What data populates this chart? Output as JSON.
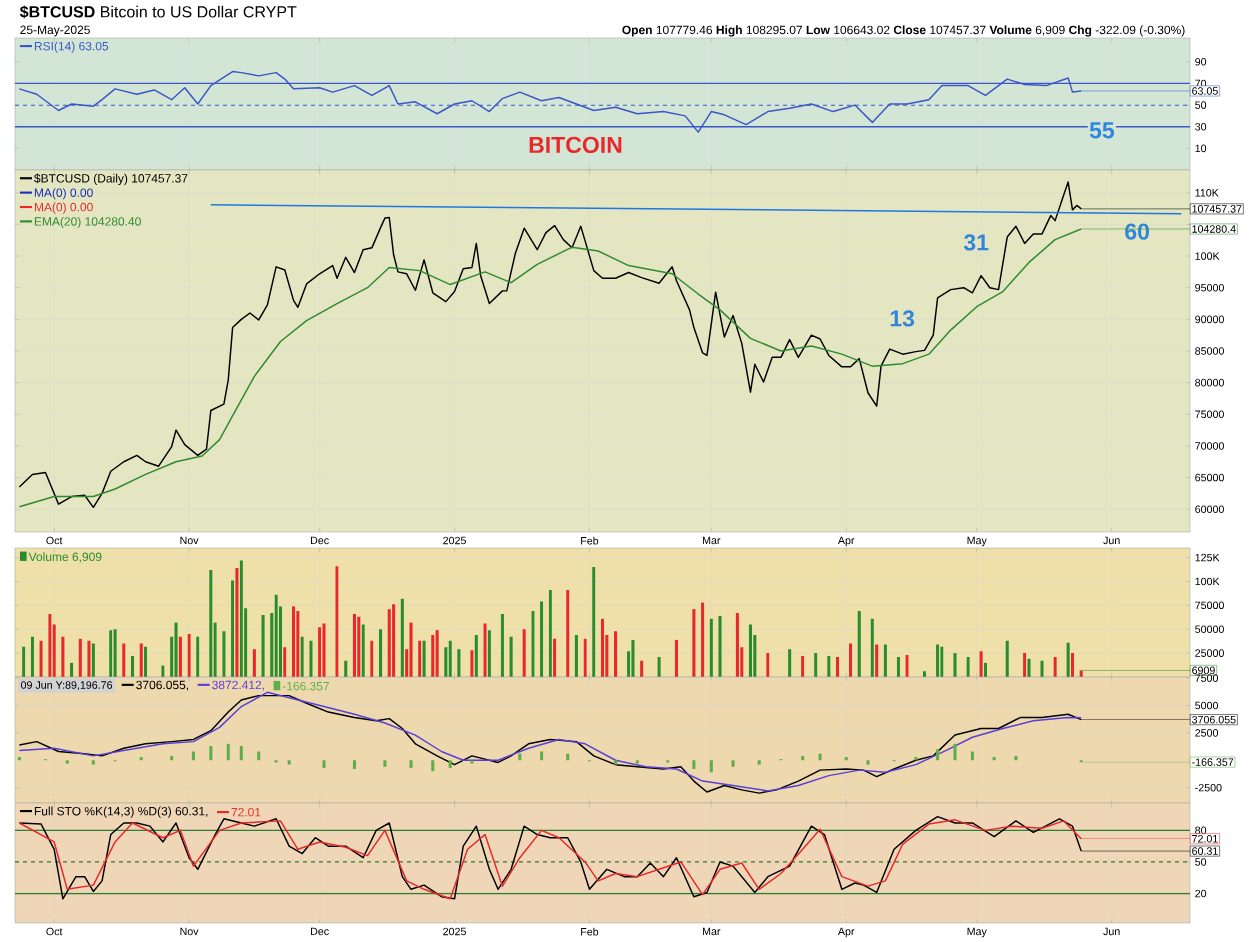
{
  "chart_data": [
    {
      "type": "line",
      "title": "**$BTCUSD** Bitcoin to US Dollar CRYPT",
      "subtitle": "**Open** 107779.46 **High** 108295.07 **Low** 106643.02 **Close** 107457.37 **Volume** 6,909 **Chg** -322.09 (-0.30%)",
      "annotations": [
        "25-May-2025",
        "BITCOIN",
        "55",
        {
          "text": "63.05",
          "x": "2025-05-25",
          "y": 63.05
        }
      ],
      "xlim": [
        "2024-09-22",
        "2025-06-19"
      ],
      "xticks": [
        {
          "value": "2024-10-01",
          "label": null
        },
        {
          "value": "2024-11-01",
          "label": null
        },
        {
          "value": "2024-12-01",
          "label": null
        },
        {
          "value": "2025-01-01",
          "label": null
        },
        {
          "value": "2025-02-01",
          "label": null
        },
        {
          "value": "2025-03-01",
          "label": null
        },
        {
          "value": "2025-04-01",
          "label": null
        },
        {
          "value": "2025-05-01",
          "label": null
        },
        {
          "value": "2025-06-01",
          "label": null
        }
      ],
      "ylim": [
        -10,
        112
      ],
      "yticks": [
        10,
        30,
        50,
        70,
        90
      ],
      "tick_labels": "y",
      "grid": "x",
      "legend": "top left",
      "ref_lines": [
        {
          "axis": "y",
          "value": 70,
          "color": "#3a56c8"
        },
        {
          "axis": "y",
          "value": 50,
          "color": "#3a56c8",
          "line_style": "dashed"
        },
        {
          "axis": "y",
          "value": 30,
          "color": "#3a56c8"
        }
      ],
      "series": [
        {
          "name": "RSI(14) 63.05",
          "color": "#3a56c8",
          "x": [
            "2024-09-23",
            "2024-09-27",
            "2024-10-02",
            "2024-10-05",
            "2024-10-10",
            "2024-10-12",
            "2024-10-15",
            "2024-10-20",
            "2024-10-24",
            "2024-10-28",
            "2024-10-31",
            "2024-11-03",
            "2024-11-06",
            "2024-11-11",
            "2024-11-13",
            "2024-11-17",
            "2024-11-21",
            "2024-11-23",
            "2024-11-25",
            "2024-12-01",
            "2024-12-04",
            "2024-12-09",
            "2024-12-13",
            "2024-12-17",
            "2024-12-19",
            "2024-12-23",
            "2024-12-28",
            "2025-01-01",
            "2025-01-05",
            "2025-01-09",
            "2025-01-12",
            "2025-01-16",
            "2025-01-21",
            "2025-01-25",
            "2025-01-29",
            "2025-02-02",
            "2025-02-07",
            "2025-02-12",
            "2025-02-18",
            "2025-02-23",
            "2025-02-26",
            "2025-03-01",
            "2025-03-04",
            "2025-03-09",
            "2025-03-14",
            "2025-03-19",
            "2025-03-24",
            "2025-03-29",
            "2025-04-03",
            "2025-04-07",
            "2025-04-11",
            "2025-04-15",
            "2025-04-20",
            "2025-04-23",
            "2025-04-29",
            "2025-05-03",
            "2025-05-08",
            "2025-05-12",
            "2025-05-17",
            "2025-05-22",
            "2025-05-23",
            "2025-05-25"
          ],
          "values": [
            65,
            60,
            45,
            51,
            49,
            55,
            65,
            60,
            64,
            55,
            66,
            51,
            68,
            81,
            80,
            77,
            80,
            74,
            65,
            66,
            62,
            68,
            59,
            68,
            51,
            53,
            42,
            51,
            54,
            44,
            56,
            62,
            54,
            57,
            51,
            45,
            48,
            42,
            44,
            40,
            25,
            44,
            41,
            32,
            44,
            47,
            51,
            44,
            50,
            34,
            51,
            51,
            55,
            68,
            68,
            59,
            74,
            69,
            68,
            75,
            62,
            63.05
          ]
        }
      ]
    },
    {
      "type": "line",
      "annotations": [
        "13",
        "31",
        "60",
        {
          "text": "107457.37",
          "x": "2025-05-25",
          "y": 107457.37
        },
        {
          "text": "104280.4",
          "x": "2025-05-25",
          "y": 104280.4
        }
      ],
      "xlim": [
        "2024-09-22",
        "2025-06-19"
      ],
      "xticks": [
        {
          "value": "2024-10-01",
          "label": "Oct"
        },
        {
          "value": "2024-11-01",
          "label": "Nov"
        },
        {
          "value": "2024-12-01",
          "label": "Dec"
        },
        {
          "value": "2025-01-01",
          "label": "2025"
        },
        {
          "value": "2025-02-01",
          "label": "Feb"
        },
        {
          "value": "2025-03-01",
          "label": "Mar"
        },
        {
          "value": "2025-04-01",
          "label": "Apr"
        },
        {
          "value": "2025-05-01",
          "label": "May"
        },
        {
          "value": "2025-06-01",
          "label": "Jun"
        }
      ],
      "ylim": [
        56400,
        113600
      ],
      "yticks": [
        60000,
        65000,
        70000,
        75000,
        80000,
        85000,
        90000,
        95000,
        {
          "value": 100000,
          "label": "100K"
        },
        {
          "value": 105000,
          "label": null
        },
        {
          "value": 110000,
          "label": "110K"
        }
      ],
      "grid": true,
      "legend": "top left",
      "series": [
        {
          "name": "$BTCUSD (Daily) 107457.37",
          "color": "#000000",
          "x": [
            "2024-09-23",
            "2024-09-26",
            "2024-09-29",
            "2024-10-02",
            "2024-10-05",
            "2024-10-08",
            "2024-10-10",
            "2024-10-12",
            "2024-10-14",
            "2024-10-17",
            "2024-10-20",
            "2024-10-22",
            "2024-10-25",
            "2024-10-28",
            "2024-10-29",
            "2024-10-31",
            "2024-11-03",
            "2024-11-05",
            "2024-11-06",
            "2024-11-09",
            "2024-11-10",
            "2024-11-11",
            "2024-11-13",
            "2024-11-15",
            "2024-11-17",
            "2024-11-19",
            "2024-11-21",
            "2024-11-23",
            "2024-11-25",
            "2024-11-26",
            "2024-11-28",
            "2024-12-01",
            "2024-12-04",
            "2024-12-05",
            "2024-12-07",
            "2024-12-09",
            "2024-12-11",
            "2024-12-13",
            "2024-12-15",
            "2024-12-16",
            "2024-12-17",
            "2024-12-18",
            "2024-12-19",
            "2024-12-21",
            "2024-12-23",
            "2024-12-25",
            "2024-12-27",
            "2024-12-30",
            "2025-01-01",
            "2025-01-03",
            "2025-01-05",
            "2025-01-06",
            "2025-01-07",
            "2025-01-09",
            "2025-01-12",
            "2025-01-13",
            "2025-01-15",
            "2025-01-17",
            "2025-01-20",
            "2025-01-22",
            "2025-01-24",
            "2025-01-26",
            "2025-01-28",
            "2025-01-30",
            "2025-01-31",
            "2025-02-02",
            "2025-02-04",
            "2025-02-07",
            "2025-02-10",
            "2025-02-13",
            "2025-02-17",
            "2025-02-20",
            "2025-02-21",
            "2025-02-24",
            "2025-02-25",
            "2025-02-27",
            "2025-02-28",
            "2025-03-02",
            "2025-03-04",
            "2025-03-06",
            "2025-03-08",
            "2025-03-10",
            "2025-03-11",
            "2025-03-13",
            "2025-03-15",
            "2025-03-17",
            "2025-03-19",
            "2025-03-21",
            "2025-03-24",
            "2025-03-26",
            "2025-03-28",
            "2025-03-31",
            "2025-04-02",
            "2025-04-04",
            "2025-04-06",
            "2025-04-08",
            "2025-04-09",
            "2025-04-11",
            "2025-04-14",
            "2025-04-17",
            "2025-04-19",
            "2025-04-21",
            "2025-04-22",
            "2025-04-25",
            "2025-04-28",
            "2025-04-30",
            "2025-05-02",
            "2025-05-04",
            "2025-05-06",
            "2025-05-08",
            "2025-05-10",
            "2025-05-12",
            "2025-05-14",
            "2025-05-16",
            "2025-05-18",
            "2025-05-19",
            "2025-05-21",
            "2025-05-22",
            "2025-05-23",
            "2025-05-24",
            "2025-05-25"
          ],
          "values": [
            63500,
            65500,
            65800,
            60800,
            62000,
            62200,
            60300,
            62500,
            66000,
            67500,
            68500,
            67500,
            66800,
            69900,
            72500,
            70200,
            68500,
            69500,
            75600,
            76600,
            80400,
            88700,
            90000,
            91000,
            89900,
            92300,
            98300,
            97800,
            93000,
            91900,
            95600,
            97200,
            98500,
            96500,
            99800,
            97400,
            101000,
            101300,
            104500,
            106000,
            106100,
            100200,
            97500,
            97200,
            94600,
            99400,
            94200,
            92800,
            94400,
            98000,
            98200,
            102000,
            96900,
            92500,
            94500,
            94500,
            100500,
            104400,
            101000,
            103700,
            104800,
            102600,
            101300,
            104700,
            102400,
            97700,
            96500,
            96500,
            97400,
            96600,
            95700,
            98300,
            96100,
            91500,
            88700,
            84700,
            84300,
            94300,
            87200,
            90600,
            86200,
            78500,
            82900,
            80100,
            84000,
            84000,
            86800,
            84000,
            87500,
            86900,
            84300,
            82500,
            82500,
            83800,
            78400,
            76300,
            82600,
            85300,
            84500,
            84900,
            85100,
            87500,
            93400,
            94700,
            95000,
            94200,
            96900,
            95000,
            94700,
            103000,
            104700,
            102000,
            103500,
            103500,
            106400,
            105600,
            109700,
            111700,
            107300,
            108000,
            107457.37
          ]
        },
        {
          "name": "MA(0) 0.00",
          "color": "#1c2fb8"
        },
        {
          "name": "MA(0) 0.00",
          "color": "#e8282b"
        },
        {
          "name": "EMA(20) 104280.40",
          "color": "#2f8a2f",
          "x": [
            "2024-09-23",
            "2024-10-01",
            "2024-10-10",
            "2024-10-15",
            "2024-10-22",
            "2024-10-29",
            "2024-11-04",
            "2024-11-08",
            "2024-11-12",
            "2024-11-16",
            "2024-11-22",
            "2024-11-28",
            "2024-12-05",
            "2024-12-12",
            "2024-12-17",
            "2024-12-24",
            "2024-12-31",
            "2025-01-08",
            "2025-01-14",
            "2025-01-20",
            "2025-01-28",
            "2025-02-03",
            "2025-02-10",
            "2025-02-20",
            "2025-02-26",
            "2025-03-03",
            "2025-03-10",
            "2025-03-17",
            "2025-03-24",
            "2025-03-31",
            "2025-04-07",
            "2025-04-14",
            "2025-04-20",
            "2025-04-25",
            "2025-05-01",
            "2025-05-07",
            "2025-05-13",
            "2025-05-19",
            "2025-05-25"
          ],
          "values": [
            60400,
            62000,
            62000,
            63200,
            65500,
            67500,
            68400,
            71000,
            76000,
            81000,
            86500,
            89800,
            92500,
            95000,
            98200,
            97700,
            95500,
            97500,
            95800,
            98700,
            101400,
            100800,
            98500,
            97200,
            94000,
            91500,
            87000,
            85000,
            85800,
            84500,
            82600,
            83000,
            84500,
            88300,
            92000,
            94400,
            99000,
            102600,
            104280.4
          ]
        },
        {
          "color": "#1e78e0",
          "x": [
            "2024-11-06",
            "2025-06-17"
          ],
          "values": [
            108100,
            106700
          ]
        }
      ]
    },
    {
      "type": "bar",
      "annotations": [
        {
          "text": "6909",
          "x": "2025-05-25",
          "y": 6909
        }
      ],
      "xlim": [
        "2024-09-22",
        "2025-06-19"
      ],
      "xticks": [
        {
          "value": "2024-10-01",
          "label": null
        },
        {
          "value": "2024-11-01",
          "label": null
        },
        {
          "value": "2024-12-01",
          "label": null
        },
        {
          "value": "2025-01-01",
          "label": null
        },
        {
          "value": "2025-02-01",
          "label": null
        },
        {
          "value": "2025-03-01",
          "label": null
        },
        {
          "value": "2025-04-01",
          "label": null
        },
        {
          "value": "2025-05-01",
          "label": null
        },
        {
          "value": "2025-06-01",
          "label": null
        }
      ],
      "ylim": [
        0,
        135000
      ],
      "yticks": [
        25000,
        50000,
        75000,
        {
          "value": 100000,
          "label": "100K"
        },
        {
          "value": 125000,
          "label": "125K"
        }
      ],
      "tick_labels": "y",
      "grid": true,
      "legend": "top left",
      "series": [
        {
          "name": "Volume 6,909",
          "color": "#2a8c2a",
          "x": [
            "2024-09-24",
            "2024-09-26",
            "2024-09-28",
            "2024-09-30",
            "2024-10-01",
            "2024-10-03",
            "2024-10-05",
            "2024-10-07",
            "2024-10-09",
            "2024-10-10",
            "2024-10-14",
            "2024-10-15",
            "2024-10-17",
            "2024-10-19",
            "2024-10-21",
            "2024-10-22",
            "2024-10-26",
            "2024-10-28",
            "2024-10-29",
            "2024-10-30",
            "2024-11-01",
            "2024-11-03",
            "2024-11-06",
            "2024-11-07",
            "2024-11-09",
            "2024-11-11",
            "2024-11-12",
            "2024-11-13",
            "2024-11-14",
            "2024-11-16",
            "2024-11-18",
            "2024-11-20",
            "2024-11-21",
            "2024-11-22",
            "2024-11-23",
            "2024-11-25",
            "2024-11-26",
            "2024-11-27",
            "2024-11-29",
            "2024-12-01",
            "2024-12-02",
            "2024-12-05",
            "2024-12-07",
            "2024-12-09",
            "2024-12-10",
            "2024-12-11",
            "2024-12-13",
            "2024-12-15",
            "2024-12-17",
            "2024-12-18",
            "2024-12-20",
            "2024-12-21",
            "2024-12-22",
            "2024-12-24",
            "2024-12-25",
            "2024-12-27",
            "2024-12-28",
            "2024-12-30",
            "2024-12-31",
            "2025-01-02",
            "2025-01-05",
            "2025-01-06",
            "2025-01-08",
            "2025-01-09",
            "2025-01-12",
            "2025-01-14",
            "2025-01-17",
            "2025-01-19",
            "2025-01-21",
            "2025-01-23",
            "2025-01-24",
            "2025-01-27",
            "2025-01-29",
            "2025-01-31",
            "2025-02-02",
            "2025-02-04",
            "2025-02-05",
            "2025-02-07",
            "2025-02-10",
            "2025-02-11",
            "2025-02-13",
            "2025-02-17",
            "2025-02-21",
            "2025-02-25",
            "2025-02-27",
            "2025-03-01",
            "2025-03-03",
            "2025-03-07",
            "2025-03-08",
            "2025-03-10",
            "2025-03-11",
            "2025-03-14",
            "2025-03-19",
            "2025-03-22",
            "2025-03-25",
            "2025-03-28",
            "2025-03-30",
            "2025-04-02",
            "2025-04-04",
            "2025-04-07",
            "2025-04-08",
            "2025-04-10",
            "2025-04-13",
            "2025-04-15",
            "2025-04-19",
            "2025-04-22",
            "2025-04-23",
            "2025-04-26",
            "2025-04-29",
            "2025-05-02",
            "2025-05-03",
            "2025-05-08",
            "2025-05-12",
            "2025-05-13",
            "2025-05-16",
            "2025-05-19",
            "2025-05-22",
            "2025-05-23",
            "2025-05-25"
          ],
          "values": [
            32000,
            42000,
            38000,
            66000,
            55000,
            42000,
            15000,
            40000,
            38000,
            35000,
            49000,
            50000,
            35000,
            22000,
            35000,
            32000,
            12000,
            42000,
            57000,
            42000,
            45000,
            42000,
            112000,
            57000,
            48000,
            101000,
            114000,
            122000,
            72000,
            29000,
            65000,
            67000,
            86000,
            74000,
            31000,
            74000,
            69000,
            42000,
            38000,
            52000,
            56000,
            116000,
            17000,
            66000,
            63000,
            55000,
            38000,
            50000,
            71000,
            76000,
            82000,
            29000,
            57000,
            38000,
            38000,
            44000,
            49000,
            31000,
            38000,
            29000,
            28000,
            44000,
            56000,
            49000,
            66000,
            42000,
            50000,
            69000,
            79000,
            91000,
            40000,
            91000,
            44000,
            40000,
            115000,
            61000,
            44000,
            48000,
            27000,
            39000,
            17000,
            21000,
            39000,
            71000,
            78000,
            61000,
            64000,
            67000,
            31000,
            55000,
            44000,
            25000,
            29000,
            22000,
            25000,
            22000,
            21000,
            35000,
            69000,
            61000,
            34000,
            34000,
            21000,
            23000,
            6000,
            34000,
            32000,
            25000,
            21000,
            27000,
            15000,
            38000,
            25000,
            19000,
            17000,
            21000,
            36000,
            25000,
            6909
          ],
          "colors": [
            "#2a8c2a",
            "#2a8c2a",
            "#e8282b",
            "#e8282b",
            "#e8282b",
            "#e8282b",
            "#2a8c2a",
            "#e8282b",
            "#e8282b",
            "#2a8c2a",
            "#2a8c2a",
            "#2a8c2a",
            "#e8282b",
            "#2a8c2a",
            "#e8282b",
            "#2a8c2a",
            "#2a8c2a",
            "#2a8c2a",
            "#2a8c2a",
            "#e8282b",
            "#e8282b",
            "#2a8c2a",
            "#2a8c2a",
            "#2a8c2a",
            "#2a8c2a",
            "#2a8c2a",
            "#e8282b",
            "#2a8c2a",
            "#2a8c2a",
            "#e8282b",
            "#2a8c2a",
            "#2a8c2a",
            "#2a8c2a",
            "#2a8c2a",
            "#e8282b",
            "#e8282b",
            "#e8282b",
            "#2a8c2a",
            "#2a8c2a",
            "#e8282b",
            "#e8282b",
            "#e8282b",
            "#2a8c2a",
            "#e8282b",
            "#e8282b",
            "#2a8c2a",
            "#e8282b",
            "#2a8c2a",
            "#e8282b",
            "#e8282b",
            "#2a8c2a",
            "#e8282b",
            "#e8282b",
            "#e8282b",
            "#2a8c2a",
            "#e8282b",
            "#e8282b",
            "#2a8c2a",
            "#2a8c2a",
            "#2a8c2a",
            "#e8282b",
            "#2a8c2a",
            "#e8282b",
            "#2a8c2a",
            "#2a8c2a",
            "#2a8c2a",
            "#e8282b",
            "#2a8c2a",
            "#2a8c2a",
            "#2a8c2a",
            "#e8282b",
            "#e8282b",
            "#2a8c2a",
            "#e8282b",
            "#2a8c2a",
            "#e8282b",
            "#e8282b",
            "#e8282b",
            "#2a8c2a",
            "#2a8c2a",
            "#e8282b",
            "#2a8c2a",
            "#e8282b",
            "#e8282b",
            "#e8282b",
            "#2a8c2a",
            "#2a8c2a",
            "#e8282b",
            "#e8282b",
            "#2a8c2a",
            "#2a8c2a",
            "#e8282b",
            "#2a8c2a",
            "#e8282b",
            "#2a8c2a",
            "#2a8c2a",
            "#e8282b",
            "#e8282b",
            "#2a8c2a",
            "#2a8c2a",
            "#e8282b",
            "#2a8c2a",
            "#2a8c2a",
            "#e8282b",
            "#2a8c2a",
            "#2a8c2a",
            "#2a8c2a",
            "#2a8c2a",
            "#2a8c2a",
            "#e8282b",
            "#2a8c2a",
            "#2a8c2a",
            "#e8282b",
            "#2a8c2a",
            "#2a8c2a",
            "#e8282b",
            "#2a8c2a",
            "#e8282b",
            "#e8282b"
          ]
        }
      ]
    },
    {
      "type": "line",
      "annotations": [
        "09 Jun Y:89,196.76",
        {
          "text": "3706.055",
          "x": "2025-05-25",
          "y": 3706.055
        },
        {
          "text": "-166.357",
          "x": "2025-05-25",
          "y": -166.357
        }
      ],
      "xlim": [
        "2024-09-22",
        "2025-06-19"
      ],
      "xticks": [
        {
          "value": "2024-10-01",
          "label": null
        },
        {
          "value": "2024-11-01",
          "label": null
        },
        {
          "value": "2024-12-01",
          "label": null
        },
        {
          "value": "2025-01-01",
          "label": null
        },
        {
          "value": "2025-02-01",
          "label": null
        },
        {
          "value": "2025-03-01",
          "label": null
        },
        {
          "value": "2025-04-01",
          "label": null
        },
        {
          "value": "2025-05-01",
          "label": null
        },
        {
          "value": "2025-06-01",
          "label": null
        }
      ],
      "ylim": [
        -3900,
        7600
      ],
      "yticks": [
        -2500,
        2500,
        5000,
        7500
      ],
      "tick_labels": "y",
      "grid": true,
      "legend": "top left",
      "series": [
        {
          "name": "3706.055,",
          "color": "#000000",
          "x": [
            "2024-09-23",
            "2024-09-27",
            "2024-10-02",
            "2024-10-08",
            "2024-10-12",
            "2024-10-17",
            "2024-10-22",
            "2024-10-28",
            "2024-11-02",
            "2024-11-06",
            "2024-11-10",
            "2024-11-13",
            "2024-11-17",
            "2024-11-22",
            "2024-11-24",
            "2024-11-28",
            "2024-12-03",
            "2024-12-09",
            "2024-12-14",
            "2024-12-17",
            "2024-12-20",
            "2024-12-23",
            "2024-12-28",
            "2025-01-01",
            "2025-01-05",
            "2025-01-11",
            "2025-01-14",
            "2025-01-18",
            "2025-01-23",
            "2025-01-29",
            "2025-02-02",
            "2025-02-07",
            "2025-02-12",
            "2025-02-18",
            "2025-02-22",
            "2025-02-25",
            "2025-02-28",
            "2025-03-04",
            "2025-03-08",
            "2025-03-12",
            "2025-03-16",
            "2025-03-21",
            "2025-03-26",
            "2025-04-01",
            "2025-04-05",
            "2025-04-08",
            "2025-04-12",
            "2025-04-17",
            "2025-04-21",
            "2025-04-26",
            "2025-05-02",
            "2025-05-06",
            "2025-05-11",
            "2025-05-16",
            "2025-05-22",
            "2025-05-25"
          ],
          "values": [
            1400,
            1700,
            800,
            600,
            400,
            1100,
            1500,
            1700,
            1900,
            2700,
            4400,
            5500,
            5900,
            5900,
            5900,
            5200,
            4400,
            3900,
            3600,
            3800,
            2900,
            1500,
            400,
            -400,
            400,
            -200,
            400,
            1500,
            1900,
            1700,
            400,
            -400,
            -600,
            -800,
            -600,
            -1900,
            -2900,
            -2300,
            -2700,
            -3000,
            -2700,
            -1900,
            -900,
            -800,
            -900,
            -1500,
            -800,
            0,
            400,
            2300,
            2900,
            2900,
            3900,
            3900,
            4200,
            3706.055
          ]
        },
        {
          "name": "3872.412,",
          "color": "#5a3fd6",
          "x": [
            "2024-09-23",
            "2024-10-01",
            "2024-10-10",
            "2024-10-17",
            "2024-10-26",
            "2024-11-02",
            "2024-11-08",
            "2024-11-13",
            "2024-11-19",
            "2024-11-24",
            "2024-12-02",
            "2024-12-09",
            "2024-12-16",
            "2024-12-23",
            "2024-12-29",
            "2025-01-03",
            "2025-01-11",
            "2025-01-18",
            "2025-01-25",
            "2025-01-31",
            "2025-02-07",
            "2025-02-14",
            "2025-02-21",
            "2025-02-27",
            "2025-03-06",
            "2025-03-14",
            "2025-03-21",
            "2025-03-28",
            "2025-04-04",
            "2025-04-10",
            "2025-04-17",
            "2025-04-24",
            "2025-04-30",
            "2025-05-07",
            "2025-05-14",
            "2025-05-22",
            "2025-05-25"
          ],
          "values": [
            900,
            1100,
            400,
            900,
            1500,
            1700,
            3000,
            4900,
            6200,
            5700,
            4900,
            4200,
            3400,
            2300,
            800,
            0,
            0,
            1100,
            1900,
            1500,
            0,
            -600,
            -800,
            -1900,
            -2300,
            -2800,
            -2300,
            -1400,
            -900,
            -1100,
            -400,
            900,
            2100,
            2900,
            3600,
            3900,
            3872.412
          ]
        },
        {
          "name": "-166.357",
          "type": "bar",
          "color": "#5fae4a",
          "x": [
            "2024-09-23",
            "2024-09-29",
            "2024-10-04",
            "2024-10-10",
            "2024-10-15",
            "2024-10-21",
            "2024-10-28",
            "2024-11-02",
            "2024-11-06",
            "2024-11-10",
            "2024-11-13",
            "2024-11-17",
            "2024-11-21",
            "2024-11-24",
            "2024-12-02",
            "2024-12-09",
            "2024-12-16",
            "2024-12-22",
            "2024-12-27",
            "2024-12-31",
            "2025-01-05",
            "2025-01-11",
            "2025-01-16",
            "2025-01-21",
            "2025-01-27",
            "2025-02-01",
            "2025-02-07",
            "2025-02-12",
            "2025-02-19",
            "2025-02-25",
            "2025-03-01",
            "2025-03-06",
            "2025-03-12",
            "2025-03-17",
            "2025-03-22",
            "2025-03-26",
            "2025-04-01",
            "2025-04-06",
            "2025-04-12",
            "2025-04-17",
            "2025-04-22",
            "2025-04-26",
            "2025-04-30",
            "2025-05-05",
            "2025-05-10",
            "2025-05-14",
            "2025-05-20",
            "2025-05-25"
          ],
          "values": [
            300,
            100,
            -300,
            -400,
            -100,
            300,
            400,
            800,
            1300,
            1500,
            1300,
            800,
            -200,
            -400,
            -700,
            -800,
            -600,
            -700,
            -1000,
            -700,
            -300,
            0,
            600,
            800,
            600,
            -100,
            -400,
            -300,
            -200,
            -800,
            -1100,
            -600,
            -400,
            100,
            400,
            600,
            300,
            -400,
            -100,
            300,
            1000,
            1500,
            800,
            300,
            400,
            0,
            0,
            -166.357
          ]
        }
      ]
    },
    {
      "type": "line",
      "annotations": [
        {
          "text": "72.01",
          "x": "2025-05-25",
          "y": 72.01
        },
        {
          "text": "60.31",
          "x": "2025-05-25",
          "y": 60.31
        }
      ],
      "xlim": [
        "2024-09-22",
        "2025-06-19"
      ],
      "xticks": [
        {
          "value": "2024-10-01",
          "label": "Oct"
        },
        {
          "value": "2024-11-01",
          "label": "Nov"
        },
        {
          "value": "2024-12-01",
          "label": "Dec"
        },
        {
          "value": "2025-01-01",
          "label": "2025"
        },
        {
          "value": "2025-02-01",
          "label": "Feb"
        },
        {
          "value": "2025-03-01",
          "label": "Mar"
        },
        {
          "value": "2025-04-01",
          "label": "Apr"
        },
        {
          "value": "2025-05-01",
          "label": "May"
        },
        {
          "value": "2025-06-01",
          "label": "Jun"
        }
      ],
      "ylim": [
        -8,
        106
      ],
      "yticks": [
        20,
        50,
        80
      ],
      "grid": "x",
      "legend": "top left",
      "ref_lines": [
        {
          "axis": "y",
          "value": 80,
          "color": "#2e7d32"
        },
        {
          "axis": "y",
          "value": 50,
          "color": "#2e7d32",
          "line_style": "dashed"
        },
        {
          "axis": "y",
          "value": 20,
          "color": "#2e7d32"
        }
      ],
      "series": [
        {
          "name": "Full STO %K(14,3) %D(3) 60.31,",
          "color": "#000000",
          "x": [
            "2024-09-23",
            "2024-09-28",
            "2024-10-01",
            "2024-10-03",
            "2024-10-06",
            "2024-10-08",
            "2024-10-10",
            "2024-10-12",
            "2024-10-14",
            "2024-10-17",
            "2024-10-20",
            "2024-10-23",
            "2024-10-26",
            "2024-10-29",
            "2024-11-01",
            "2024-11-03",
            "2024-11-07",
            "2024-11-09",
            "2024-11-13",
            "2024-11-16",
            "2024-11-21",
            "2024-11-24",
            "2024-11-27",
            "2024-11-30",
            "2024-12-03",
            "2024-12-07",
            "2024-12-11",
            "2024-12-14",
            "2024-12-17",
            "2024-12-20",
            "2024-12-22",
            "2024-12-25",
            "2024-12-29",
            "2025-01-01",
            "2025-01-03",
            "2025-01-06",
            "2025-01-09",
            "2025-01-11",
            "2025-01-14",
            "2025-01-17",
            "2025-01-20",
            "2025-01-23",
            "2025-01-27",
            "2025-01-30",
            "2025-02-01",
            "2025-02-05",
            "2025-02-09",
            "2025-02-12",
            "2025-02-15",
            "2025-02-18",
            "2025-02-21",
            "2025-02-25",
            "2025-02-28",
            "2025-03-03",
            "2025-03-06",
            "2025-03-11",
            "2025-03-14",
            "2025-03-19",
            "2025-03-24",
            "2025-03-27",
            "2025-03-31",
            "2025-04-03",
            "2025-04-05",
            "2025-04-08",
            "2025-04-12",
            "2025-04-17",
            "2025-04-22",
            "2025-04-26",
            "2025-04-30",
            "2025-05-05",
            "2025-05-10",
            "2025-05-14",
            "2025-05-20",
            "2025-05-23",
            "2025-05-25"
          ],
          "values": [
            87,
            86,
            62,
            15,
            36,
            36,
            22,
            32,
            76,
            87,
            87,
            84,
            69,
            87,
            54,
            43,
            76,
            91,
            87,
            84,
            91,
            65,
            58,
            73,
            65,
            65,
            54,
            80,
            87,
            36,
            24,
            28,
            17,
            15,
            65,
            84,
            43,
            24,
            43,
            84,
            76,
            73,
            73,
            50,
            24,
            43,
            36,
            36,
            49,
            36,
            54,
            17,
            21,
            50,
            46,
            21,
            36,
            46,
            84,
            76,
            24,
            30,
            28,
            21,
            62,
            80,
            93,
            87,
            87,
            74,
            89,
            78,
            91,
            84,
            60.31
          ]
        },
        {
          "name": "72.01",
          "color": "#e8282b",
          "x": [
            "2024-09-23",
            "2024-10-01",
            "2024-10-04",
            "2024-10-10",
            "2024-10-15",
            "2024-10-19",
            "2024-10-26",
            "2024-10-30",
            "2024-11-02",
            "2024-11-08",
            "2024-11-13",
            "2024-11-22",
            "2024-11-26",
            "2024-12-01",
            "2024-12-07",
            "2024-12-12",
            "2024-12-16",
            "2024-12-21",
            "2024-12-25",
            "2024-12-31",
            "2025-01-04",
            "2025-01-08",
            "2025-01-12",
            "2025-01-16",
            "2025-01-21",
            "2025-01-25",
            "2025-01-31",
            "2025-02-03",
            "2025-02-07",
            "2025-02-12",
            "2025-02-17",
            "2025-02-22",
            "2025-02-27",
            "2025-03-03",
            "2025-03-08",
            "2025-03-12",
            "2025-03-17",
            "2025-03-22",
            "2025-03-26",
            "2025-03-31",
            "2025-04-06",
            "2025-04-10",
            "2025-04-14",
            "2025-04-20",
            "2025-04-26",
            "2025-05-03",
            "2025-05-09",
            "2025-05-16",
            "2025-05-21",
            "2025-05-25"
          ],
          "values": [
            87,
            69,
            24,
            28,
            69,
            87,
            73,
            80,
            46,
            80,
            87,
            89,
            62,
            69,
            64,
            56,
            80,
            32,
            24,
            15,
            62,
            76,
            27,
            54,
            80,
            73,
            50,
            32,
            39,
            36,
            43,
            50,
            19,
            43,
            49,
            24,
            39,
            62,
            81,
            36,
            27,
            32,
            67,
            86,
            90,
            80,
            84,
            82,
            89,
            72.01
          ]
        }
      ]
    }
  ]
}
